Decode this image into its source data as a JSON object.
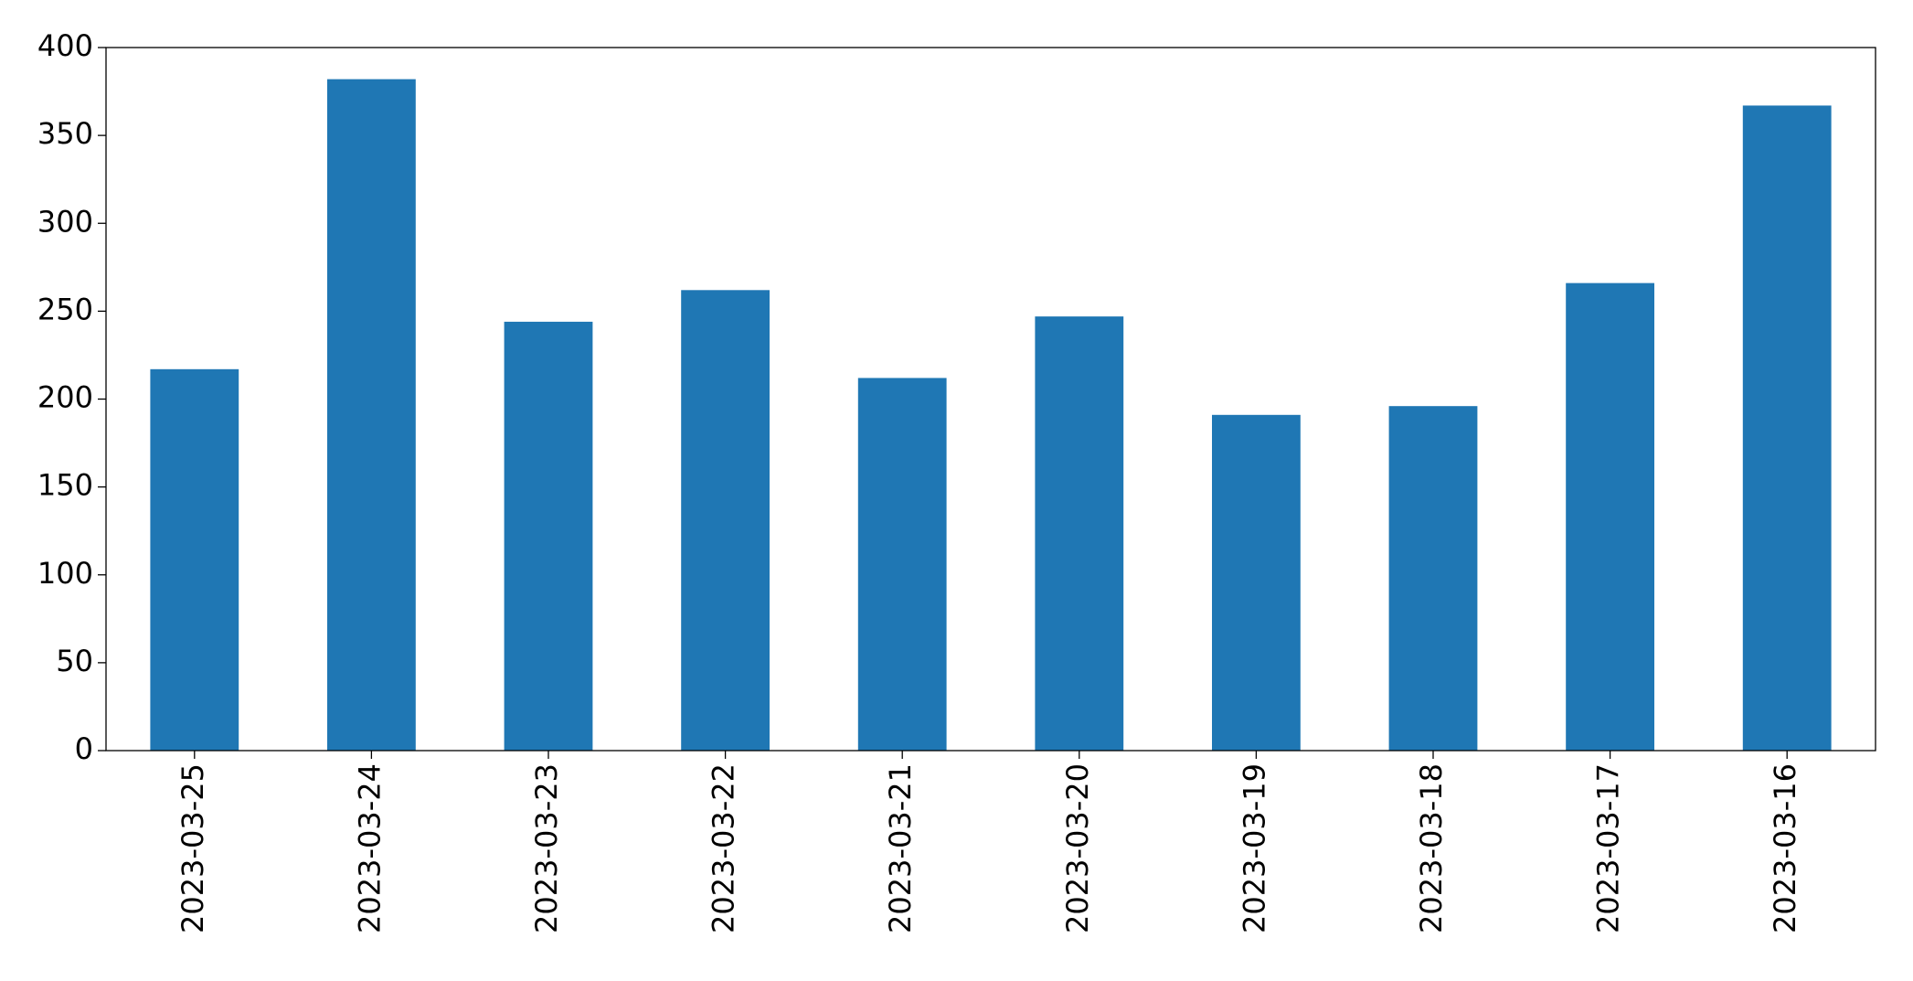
{
  "chart_data": {
    "type": "bar",
    "categories": [
      "2023-03-25",
      "2023-03-24",
      "2023-03-23",
      "2023-03-22",
      "2023-03-21",
      "2023-03-20",
      "2023-03-19",
      "2023-03-18",
      "2023-03-17",
      "2023-03-16"
    ],
    "values": [
      217,
      382,
      244,
      262,
      212,
      247,
      191,
      196,
      266,
      367
    ],
    "color": "#1f77b4",
    "ylim": [
      0,
      400
    ],
    "yticks": [
      0,
      50,
      100,
      150,
      200,
      250,
      300,
      350,
      400
    ],
    "grid": false
  }
}
